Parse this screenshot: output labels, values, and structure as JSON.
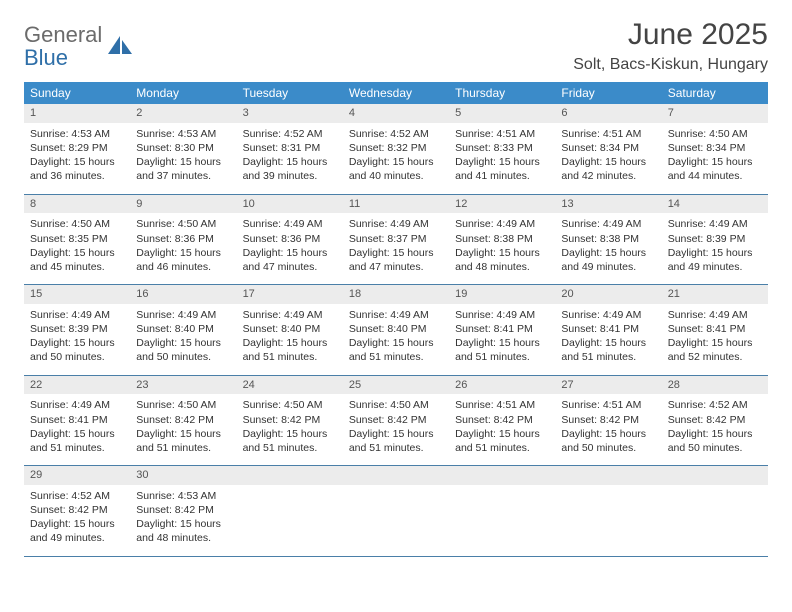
{
  "logo": {
    "text_general": "General",
    "text_blue": "Blue",
    "icon_color": "#2f6fa8"
  },
  "header": {
    "month_title": "June 2025",
    "location": "Solt, Bacs-Kiskun, Hungary"
  },
  "weekdays": [
    "Sunday",
    "Monday",
    "Tuesday",
    "Wednesday",
    "Thursday",
    "Friday",
    "Saturday"
  ],
  "colors": {
    "header_bar": "#3b8bc9",
    "header_text": "#ffffff",
    "day_number_bg": "#ececec",
    "week_divider": "#4a7fa8",
    "body_text": "#333333",
    "logo_gray": "#6b6b6b",
    "logo_blue": "#2f6fa8"
  },
  "weeks": [
    [
      {
        "n": "1",
        "sunrise": "Sunrise: 4:53 AM",
        "sunset": "Sunset: 8:29 PM",
        "d1": "Daylight: 15 hours",
        "d2": "and 36 minutes."
      },
      {
        "n": "2",
        "sunrise": "Sunrise: 4:53 AM",
        "sunset": "Sunset: 8:30 PM",
        "d1": "Daylight: 15 hours",
        "d2": "and 37 minutes."
      },
      {
        "n": "3",
        "sunrise": "Sunrise: 4:52 AM",
        "sunset": "Sunset: 8:31 PM",
        "d1": "Daylight: 15 hours",
        "d2": "and 39 minutes."
      },
      {
        "n": "4",
        "sunrise": "Sunrise: 4:52 AM",
        "sunset": "Sunset: 8:32 PM",
        "d1": "Daylight: 15 hours",
        "d2": "and 40 minutes."
      },
      {
        "n": "5",
        "sunrise": "Sunrise: 4:51 AM",
        "sunset": "Sunset: 8:33 PM",
        "d1": "Daylight: 15 hours",
        "d2": "and 41 minutes."
      },
      {
        "n": "6",
        "sunrise": "Sunrise: 4:51 AM",
        "sunset": "Sunset: 8:34 PM",
        "d1": "Daylight: 15 hours",
        "d2": "and 42 minutes."
      },
      {
        "n": "7",
        "sunrise": "Sunrise: 4:50 AM",
        "sunset": "Sunset: 8:34 PM",
        "d1": "Daylight: 15 hours",
        "d2": "and 44 minutes."
      }
    ],
    [
      {
        "n": "8",
        "sunrise": "Sunrise: 4:50 AM",
        "sunset": "Sunset: 8:35 PM",
        "d1": "Daylight: 15 hours",
        "d2": "and 45 minutes."
      },
      {
        "n": "9",
        "sunrise": "Sunrise: 4:50 AM",
        "sunset": "Sunset: 8:36 PM",
        "d1": "Daylight: 15 hours",
        "d2": "and 46 minutes."
      },
      {
        "n": "10",
        "sunrise": "Sunrise: 4:49 AM",
        "sunset": "Sunset: 8:36 PM",
        "d1": "Daylight: 15 hours",
        "d2": "and 47 minutes."
      },
      {
        "n": "11",
        "sunrise": "Sunrise: 4:49 AM",
        "sunset": "Sunset: 8:37 PM",
        "d1": "Daylight: 15 hours",
        "d2": "and 47 minutes."
      },
      {
        "n": "12",
        "sunrise": "Sunrise: 4:49 AM",
        "sunset": "Sunset: 8:38 PM",
        "d1": "Daylight: 15 hours",
        "d2": "and 48 minutes."
      },
      {
        "n": "13",
        "sunrise": "Sunrise: 4:49 AM",
        "sunset": "Sunset: 8:38 PM",
        "d1": "Daylight: 15 hours",
        "d2": "and 49 minutes."
      },
      {
        "n": "14",
        "sunrise": "Sunrise: 4:49 AM",
        "sunset": "Sunset: 8:39 PM",
        "d1": "Daylight: 15 hours",
        "d2": "and 49 minutes."
      }
    ],
    [
      {
        "n": "15",
        "sunrise": "Sunrise: 4:49 AM",
        "sunset": "Sunset: 8:39 PM",
        "d1": "Daylight: 15 hours",
        "d2": "and 50 minutes."
      },
      {
        "n": "16",
        "sunrise": "Sunrise: 4:49 AM",
        "sunset": "Sunset: 8:40 PM",
        "d1": "Daylight: 15 hours",
        "d2": "and 50 minutes."
      },
      {
        "n": "17",
        "sunrise": "Sunrise: 4:49 AM",
        "sunset": "Sunset: 8:40 PM",
        "d1": "Daylight: 15 hours",
        "d2": "and 51 minutes."
      },
      {
        "n": "18",
        "sunrise": "Sunrise: 4:49 AM",
        "sunset": "Sunset: 8:40 PM",
        "d1": "Daylight: 15 hours",
        "d2": "and 51 minutes."
      },
      {
        "n": "19",
        "sunrise": "Sunrise: 4:49 AM",
        "sunset": "Sunset: 8:41 PM",
        "d1": "Daylight: 15 hours",
        "d2": "and 51 minutes."
      },
      {
        "n": "20",
        "sunrise": "Sunrise: 4:49 AM",
        "sunset": "Sunset: 8:41 PM",
        "d1": "Daylight: 15 hours",
        "d2": "and 51 minutes."
      },
      {
        "n": "21",
        "sunrise": "Sunrise: 4:49 AM",
        "sunset": "Sunset: 8:41 PM",
        "d1": "Daylight: 15 hours",
        "d2": "and 52 minutes."
      }
    ],
    [
      {
        "n": "22",
        "sunrise": "Sunrise: 4:49 AM",
        "sunset": "Sunset: 8:41 PM",
        "d1": "Daylight: 15 hours",
        "d2": "and 51 minutes."
      },
      {
        "n": "23",
        "sunrise": "Sunrise: 4:50 AM",
        "sunset": "Sunset: 8:42 PM",
        "d1": "Daylight: 15 hours",
        "d2": "and 51 minutes."
      },
      {
        "n": "24",
        "sunrise": "Sunrise: 4:50 AM",
        "sunset": "Sunset: 8:42 PM",
        "d1": "Daylight: 15 hours",
        "d2": "and 51 minutes."
      },
      {
        "n": "25",
        "sunrise": "Sunrise: 4:50 AM",
        "sunset": "Sunset: 8:42 PM",
        "d1": "Daylight: 15 hours",
        "d2": "and 51 minutes."
      },
      {
        "n": "26",
        "sunrise": "Sunrise: 4:51 AM",
        "sunset": "Sunset: 8:42 PM",
        "d1": "Daylight: 15 hours",
        "d2": "and 51 minutes."
      },
      {
        "n": "27",
        "sunrise": "Sunrise: 4:51 AM",
        "sunset": "Sunset: 8:42 PM",
        "d1": "Daylight: 15 hours",
        "d2": "and 50 minutes."
      },
      {
        "n": "28",
        "sunrise": "Sunrise: 4:52 AM",
        "sunset": "Sunset: 8:42 PM",
        "d1": "Daylight: 15 hours",
        "d2": "and 50 minutes."
      }
    ],
    [
      {
        "n": "29",
        "sunrise": "Sunrise: 4:52 AM",
        "sunset": "Sunset: 8:42 PM",
        "d1": "Daylight: 15 hours",
        "d2": "and 49 minutes."
      },
      {
        "n": "30",
        "sunrise": "Sunrise: 4:53 AM",
        "sunset": "Sunset: 8:42 PM",
        "d1": "Daylight: 15 hours",
        "d2": "and 48 minutes."
      },
      null,
      null,
      null,
      null,
      null
    ]
  ]
}
